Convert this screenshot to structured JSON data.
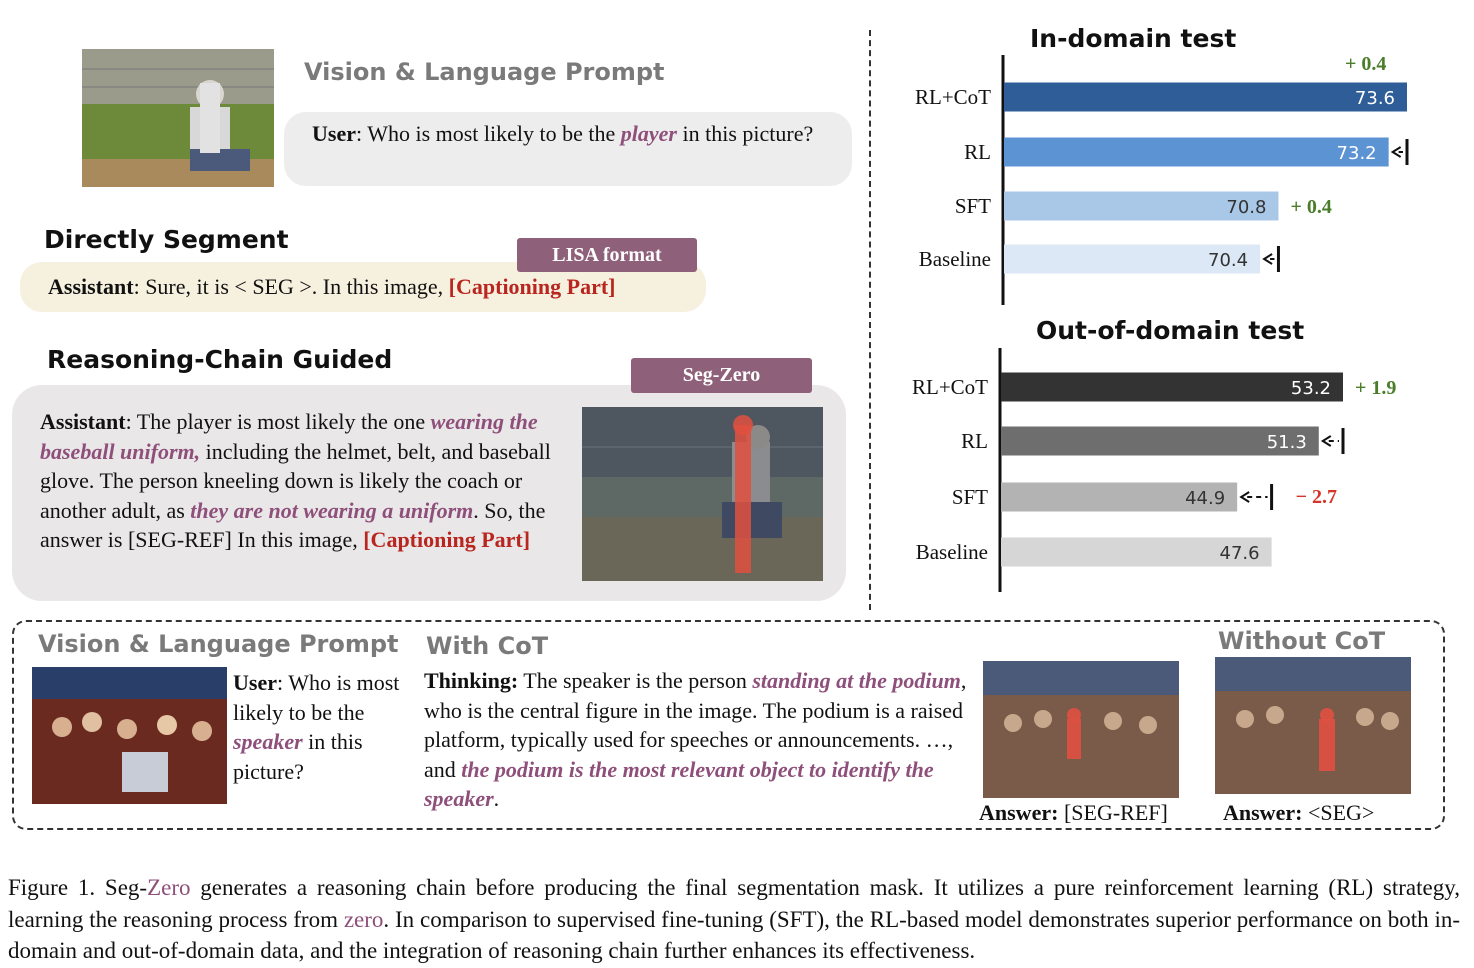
{
  "top_left": {
    "prompt_title": "Vision & Language Prompt",
    "user_label": "User",
    "user_text_a": ": Who is most likely to be the ",
    "user_highlight": "player",
    "user_text_b": " in this picture?",
    "image_alt": "baseball photo: player kneeling with coach"
  },
  "direct": {
    "title": "Directly Segment",
    "tag": "LISA format",
    "assistant_label": "Assistant",
    "text_a": ": Sure, it is < SEG >. In this image, ",
    "captioning": "[Captioning Part]"
  },
  "reasoning": {
    "title": "Reasoning-Chain Guided",
    "tag": "Seg-Zero",
    "assistant_label": "Assistant",
    "text_a": ": The player is most likely the one ",
    "hl_a": "wearing the baseball uniform,",
    "text_b": " including the helmet, belt, and baseball glove. The person kneeling down is likely the coach or another adult, as ",
    "hl_b": "they are not wearing a uniform",
    "text_c": ".  So, the answer is [SEG-REF] In this image, ",
    "captioning": "[Captioning Part]"
  },
  "charts": [
    {
      "type": "bar",
      "title": "In-domain test",
      "categories": [
        "RL+CoT",
        "RL",
        "SFT",
        "Baseline"
      ],
      "values": [
        73.6,
        73.2,
        70.8,
        70.4
      ],
      "colors": [
        "#2e5d98",
        "#5b93d3",
        "#a9c8e8",
        "#dce8f5"
      ],
      "label_colors": [
        "#ffffff",
        "#ffffff",
        "#333333",
        "#333333"
      ],
      "xlim": [
        64.8,
        73.6
      ],
      "gains": [
        {
          "text": "+ 0.4",
          "color": "#4a7d2a"
        },
        {
          "text": "",
          "color": ""
        },
        {
          "text": "+ 0.4",
          "color": "#4a7d2a"
        },
        {
          "text": "",
          "color": ""
        }
      ],
      "arrows": [
        {
          "from": 1,
          "to_value": 73.6
        },
        {
          "from": 3,
          "to_value": 70.8
        }
      ]
    },
    {
      "type": "bar",
      "title": "Out-of-domain test",
      "categories": [
        "RL+CoT",
        "RL",
        "SFT",
        "Baseline"
      ],
      "values": [
        53.2,
        51.3,
        44.9,
        47.6
      ],
      "colors": [
        "#333333",
        "#6e6e6e",
        "#b3b3b3",
        "#d6d6d6"
      ],
      "label_colors": [
        "#ffffff",
        "#ffffff",
        "#333333",
        "#333333"
      ],
      "xlim": [
        26.3,
        53.2
      ],
      "gains": [
        {
          "text": "+ 1.9",
          "color": "#4a7d2a"
        },
        {
          "text": "",
          "color": ""
        },
        {
          "text": "− 2.7",
          "color": "#d6342a"
        },
        {
          "text": "",
          "color": ""
        }
      ],
      "arrows": [
        {
          "from": 1,
          "to_value": 53.2
        },
        {
          "from": 2,
          "to_value": 47.6
        }
      ]
    }
  ],
  "bottom": {
    "prompt_title": "Vision & Language Prompt",
    "user_label": "User",
    "user_text_a": ": Who is most likely to be the ",
    "user_highlight": "speaker",
    "user_text_b": " in this picture?",
    "cot_title": "With CoT",
    "thinking_label": "Thinking:",
    "t_a": " The speaker is the person ",
    "t_hl_a": "standing at the podium",
    "t_b": ", who is the central figure in the image. The podium is a raised platform, typically used for speeches or announcements. …, and ",
    "t_hl_b": "the podium is the most relevant object to identify the speaker",
    "t_c": ".",
    "answer_label": "Answer:",
    "answer_a": " [SEG-REF]",
    "nocot_title": "Without CoT",
    "answer_b": " <SEG>"
  },
  "caption": {
    "a": "Figure 1.  Seg-",
    "zero1": "Zero",
    "b": " generates a reasoning chain before producing the final segmentation mask.  It utilizes a pure reinforcement learning (RL) strategy, learning the reasoning process from ",
    "zero2": "zero",
    "c": ". In comparison to supervised fine-tuning (SFT), the RL-based model demonstrates superior performance on both in-domain and out-of-domain data, and the integration of reasoning chain further enhances its effectiveness."
  }
}
